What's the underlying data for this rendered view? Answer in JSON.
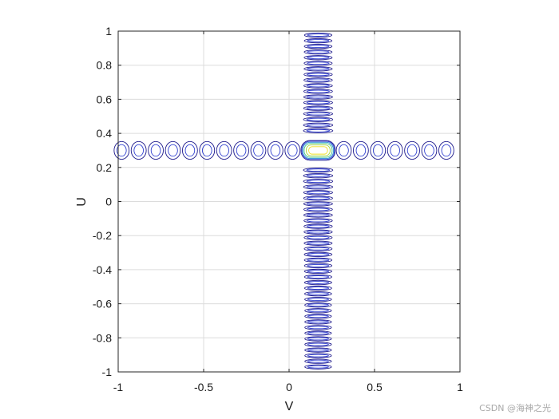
{
  "chart_data": {
    "type": "contour",
    "xlabel": "V",
    "ylabel": "U",
    "xlim": [
      -1,
      1
    ],
    "ylim": [
      -1,
      1
    ],
    "xticks": [
      -1,
      -0.5,
      0,
      0.5,
      1
    ],
    "yticks": [
      -1,
      -0.8,
      -0.6,
      -0.4,
      -0.2,
      0,
      0.2,
      0.4,
      0.6,
      0.8,
      1
    ],
    "xtick_labels": [
      "-1",
      "-0.5",
      "0",
      "0.5",
      "1"
    ],
    "ytick_labels": [
      "-1",
      "-0.8",
      "-0.6",
      "-0.4",
      "-0.2",
      "0",
      "0.2",
      "0.4",
      "0.6",
      "0.8",
      "1"
    ],
    "grid": true,
    "peak": {
      "v": 0.17,
      "u": 0.3
    },
    "vertical_band": {
      "v_center": 0.17,
      "v_halfwidth": 0.095,
      "lobe_spacing_u": 0.033
    },
    "horizontal_band": {
      "u_center": 0.3,
      "u_halfwidth": 0.055,
      "lobe_spacing_v": 0.1
    },
    "level_colors": [
      "#1e1a8c",
      "#2f3fd0",
      "#2a8fd6",
      "#3cc08a",
      "#a8d83a",
      "#f0e020"
    ]
  },
  "watermark": "CSDN @海神之光"
}
